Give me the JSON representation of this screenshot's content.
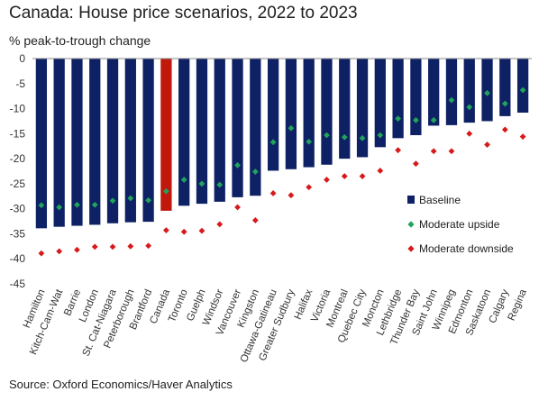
{
  "chart_data": {
    "type": "bar",
    "title": "Canada: House price scenarios, 2022 to 2023",
    "subtitle": "% peak-to-trough change",
    "source": "Source: Oxford Economics/Haver Analytics",
    "categories": [
      "Hamilton",
      "Kitch-Cam-Wat",
      "Barrie",
      "London",
      "St. Cat-Niagara",
      "Peterborough",
      "Brantford",
      "Canada",
      "Toronto",
      "Guelph",
      "Windsor",
      "Vancouver",
      "Kingston",
      "Ottawa-Gatineau",
      "Greater Sudbury",
      "Halifax",
      "Victoria",
      "Montreal",
      "Quebec City",
      "Moncton",
      "Lethbridge",
      "Thunder Bay",
      "Saint John",
      "Winnipeg",
      "Edmonton",
      "Saskatoon",
      "Calgary",
      "Regina"
    ],
    "highlight_category": "Canada",
    "ylim": [
      -45,
      0
    ],
    "yticks": [
      0,
      -5,
      -10,
      -15,
      -20,
      -25,
      -30,
      -35,
      -40,
      -45
    ],
    "grid": false,
    "legend_position": "right",
    "colors": {
      "bar": "#0d2164",
      "highlight": "#c0180c",
      "upside": "#21a35a",
      "downside": "#d7191c"
    },
    "series": [
      {
        "name": "Baseline",
        "marker": "bar",
        "values": [
          -33.9,
          -33.6,
          -33.4,
          -33.2,
          -32.9,
          -32.7,
          -32.6,
          -30.4,
          -29.4,
          -29.0,
          -28.6,
          -27.7,
          -27.4,
          -22.4,
          -22.1,
          -21.7,
          -21.2,
          -20.0,
          -19.7,
          -17.7,
          -15.9,
          -15.3,
          -13.4,
          -13.3,
          -12.8,
          -12.5,
          -11.5,
          -10.8
        ]
      },
      {
        "name": "Moderate upside",
        "marker": "diamond",
        "values": [
          -29.3,
          -29.7,
          -29.2,
          -29.2,
          -28.4,
          -27.9,
          -28.3,
          -26.5,
          -24.2,
          -25.0,
          -25.2,
          -21.3,
          -22.6,
          -16.7,
          -13.9,
          -16.6,
          -15.3,
          -15.7,
          -15.9,
          -15.3,
          -12.0,
          -12.3,
          -12.3,
          -8.3,
          -9.7,
          -6.9,
          -9.0,
          -6.3
        ]
      },
      {
        "name": "Moderate downside",
        "marker": "diamond",
        "values": [
          -38.9,
          -38.5,
          -38.2,
          -37.6,
          -37.6,
          -37.5,
          -37.4,
          -34.3,
          -34.6,
          -34.4,
          -33.1,
          -29.7,
          -32.3,
          -26.9,
          -27.3,
          -25.7,
          -24.2,
          -23.5,
          -23.5,
          -22.4,
          -18.3,
          -21.0,
          -18.5,
          -18.5,
          -15.0,
          -17.2,
          -14.2,
          -15.6
        ]
      }
    ]
  }
}
